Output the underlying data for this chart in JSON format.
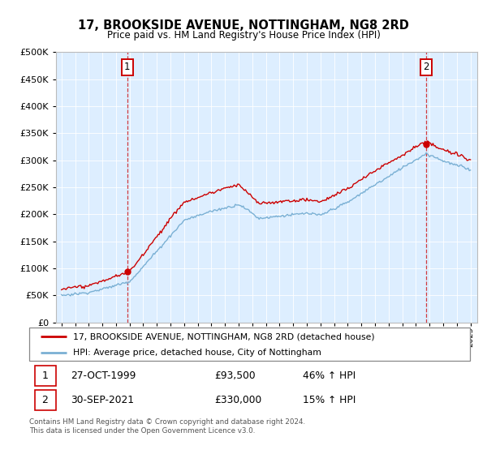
{
  "title": "17, BROOKSIDE AVENUE, NOTTINGHAM, NG8 2RD",
  "subtitle": "Price paid vs. HM Land Registry's House Price Index (HPI)",
  "legend_line1": "17, BROOKSIDE AVENUE, NOTTINGHAM, NG8 2RD (detached house)",
  "legend_line2": "HPI: Average price, detached house, City of Nottingham",
  "annotation1_date": "27-OCT-1999",
  "annotation1_price": "£93,500",
  "annotation1_hpi": "46% ↑ HPI",
  "annotation2_date": "30-SEP-2021",
  "annotation2_price": "£330,000",
  "annotation2_hpi": "15% ↑ HPI",
  "footer": "Contains HM Land Registry data © Crown copyright and database right 2024.\nThis data is licensed under the Open Government Licence v3.0.",
  "price_color": "#cc0000",
  "hpi_color": "#7ab0d4",
  "bg_color": "#ddeeff",
  "ylim_min": 0,
  "ylim_max": 500000,
  "yticks": [
    0,
    50000,
    100000,
    150000,
    200000,
    250000,
    300000,
    350000,
    400000,
    450000,
    500000
  ],
  "sale1_year": 1999.82,
  "sale1_price": 93500,
  "sale2_year": 2021.75,
  "sale2_price": 330000
}
